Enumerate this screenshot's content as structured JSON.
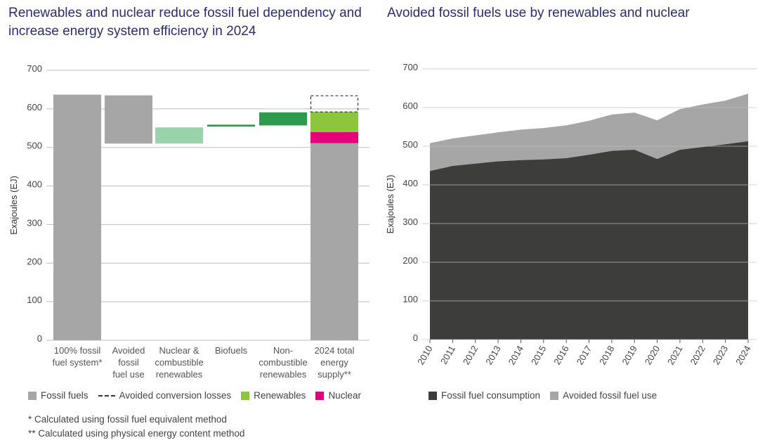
{
  "left_title": "Renewables and nuclear reduce fossil fuel dependency and increase energy system efficiency in 2024",
  "right_title": "Avoided fossil fuels use by renewables and nuclear",
  "colors": {
    "fossil": "#a6a6a6",
    "nuclear_combustible": "#9ad2ac",
    "biofuels": "#2e9a4e",
    "non_combustible": "#2e9a4e",
    "renewables": "#8cc63f",
    "nuclear": "#e5007e",
    "consumption": "#3d3d3b",
    "avoided": "#a6a6a6",
    "grid": "#bdbdbd"
  },
  "chart_data": [
    {
      "type": "bar",
      "subtype": "waterfall",
      "ylabel": "Exajoules (EJ)",
      "ylim": [
        0,
        700
      ],
      "yticks": [
        0,
        100,
        200,
        300,
        400,
        500,
        600,
        700
      ],
      "categories": [
        {
          "lines": [
            "100% fossil",
            "fuel system*"
          ]
        },
        {
          "lines": [
            "Avoided",
            "fossil",
            "fuel use"
          ]
        },
        {
          "lines": [
            "Nuclear &",
            "combustible",
            "renewables"
          ]
        },
        {
          "lines": [
            "Biofuels"
          ]
        },
        {
          "lines": [
            "Non-",
            "combustible",
            "renewables"
          ]
        },
        {
          "lines": [
            "2024 total",
            "energy",
            "supply**"
          ]
        }
      ],
      "bars": [
        {
          "segments": [
            {
              "from": 0,
              "to": 637,
              "series": "Fossil fuels"
            }
          ]
        },
        {
          "segments": [
            {
              "from": 510,
              "to": 635,
              "series": "Avoided fossil fuel use"
            }
          ]
        },
        {
          "segments": [
            {
              "from": 510,
              "to": 552,
              "series": "Nuclear & combustible renewables"
            }
          ]
        },
        {
          "segments": [
            {
              "from": 554,
              "to": 559,
              "series": "Biofuels"
            }
          ]
        },
        {
          "segments": [
            {
              "from": 557,
              "to": 591,
              "series": "Non-combustible renewables"
            }
          ]
        },
        {
          "segments": [
            {
              "from": 0,
              "to": 511,
              "series": "Fossil fuels"
            },
            {
              "from": 511,
              "to": 540,
              "series": "Nuclear"
            },
            {
              "from": 540,
              "to": 592,
              "series": "Renewables"
            },
            {
              "from": 592,
              "to": 634,
              "series": "Avoided conversion losses",
              "dashed": true
            }
          ]
        }
      ],
      "legend": [
        "Fossil fuels",
        "Avoided conversion losses",
        "Renewables",
        "Nuclear"
      ]
    },
    {
      "type": "area",
      "stacked": true,
      "ylabel": "Exajoules (EJ)",
      "ylim": [
        0,
        700
      ],
      "yticks": [
        0,
        100,
        200,
        300,
        400,
        500,
        600,
        700
      ],
      "x": [
        "2010",
        "2011",
        "2012",
        "2013",
        "2014",
        "2015",
        "2016",
        "2017",
        "2018",
        "2019",
        "2020",
        "2021",
        "2022",
        "2023",
        "2024"
      ],
      "series": [
        {
          "name": "Fossil fuel consumption",
          "values": [
            436,
            449,
            455,
            461,
            464,
            466,
            469,
            478,
            488,
            491,
            467,
            491,
            498,
            505,
            513
          ]
        },
        {
          "name": "Avoided fossil fuel use",
          "values": [
            72,
            71,
            73,
            75,
            79,
            81,
            85,
            88,
            94,
            96,
            100,
            105,
            110,
            113,
            123
          ]
        }
      ]
    }
  ],
  "legend_left": {
    "fossil": "Fossil fuels",
    "losses": "Avoided conversion losses",
    "renewables": "Renewables",
    "nuclear": "Nuclear"
  },
  "legend_right": {
    "consumption": "Fossil fuel consumption",
    "avoided": "Avoided fossil fuel use"
  },
  "notes": [
    "* Calculated using fossil fuel equivalent method",
    "** Calculated using physical energy content method"
  ]
}
